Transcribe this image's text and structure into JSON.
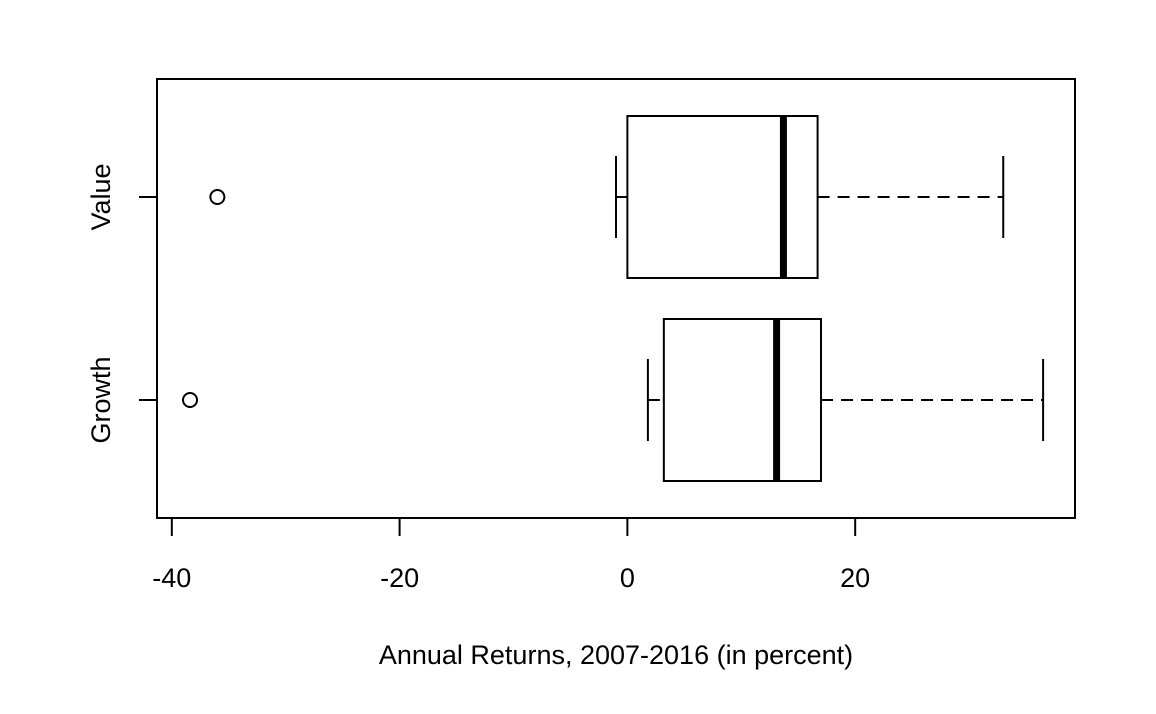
{
  "chart_data": {
    "type": "boxplot",
    "orientation": "horizontal",
    "xlabel": "Annual Returns, 2007-2016 (in percent)",
    "ylabel": "",
    "xlim": [
      -41.3,
      39.3
    ],
    "xticks": [
      -40,
      -20,
      0,
      20
    ],
    "xtick_labels": [
      "-40",
      "-20",
      "0",
      "20"
    ],
    "grid": false,
    "legend": "none",
    "colors": {
      "stroke": "#000000",
      "fill": "#ffffff",
      "background": "#ffffff"
    },
    "series": [
      {
        "name": "Value",
        "whisker_low": -1.0,
        "q1": 0.0,
        "median": 13.7,
        "q3": 16.7,
        "whisker_high": 33.0,
        "outliers": [
          -36.0
        ]
      },
      {
        "name": "Growth",
        "whisker_low": 1.8,
        "q1": 3.2,
        "median": 13.1,
        "q3": 17.0,
        "whisker_high": 36.5,
        "outliers": [
          -38.4
        ]
      }
    ]
  }
}
